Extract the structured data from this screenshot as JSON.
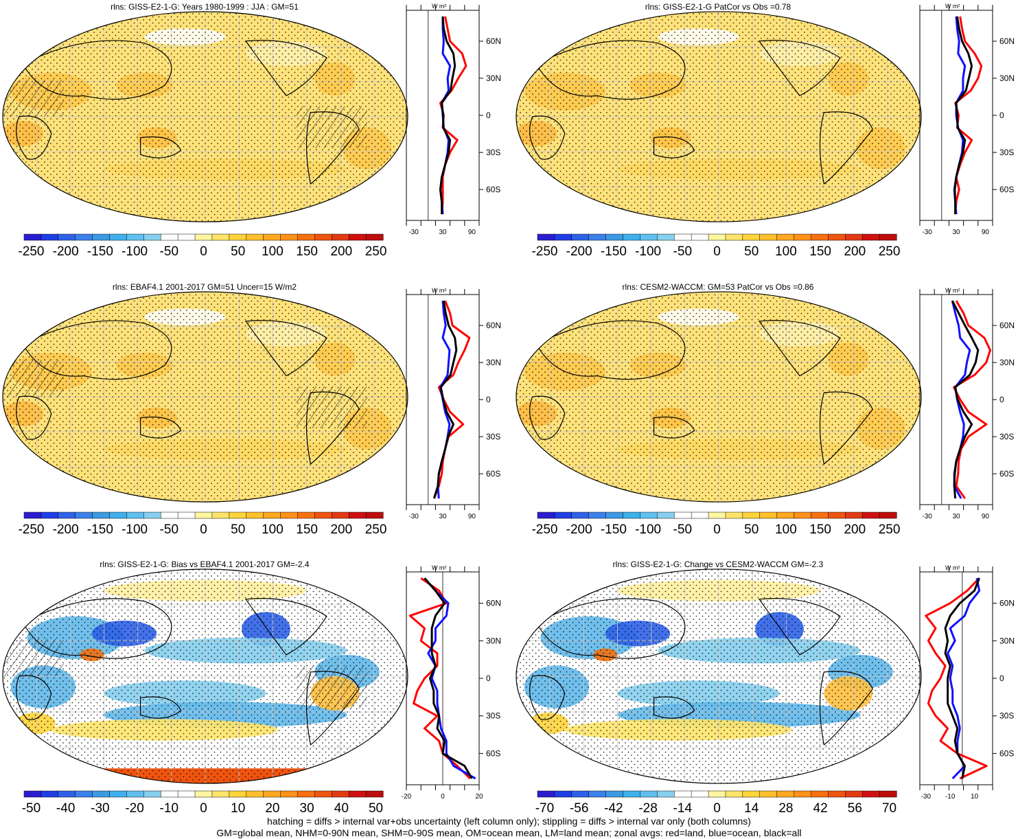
{
  "palette": {
    "sequential": [
      "#ffffff",
      "#fff4b0",
      "#ffe680",
      "#ffd040",
      "#ffb830",
      "#ff9a20",
      "#f07010",
      "#e04010",
      "#c81010"
    ],
    "diverging_neg": [
      "#2020d0",
      "#2050e0",
      "#3080e8",
      "#40a0e8",
      "#60b8ea",
      "#8cccf0"
    ],
    "diverging_pos": [
      "#fff0a0",
      "#ffd860",
      "#ffc040",
      "#ffa020",
      "#f07810",
      "#e04010",
      "#c01010"
    ],
    "land_line": "#ff0000",
    "ocean_line": "#1010ff",
    "all_line": "#000000"
  },
  "colorbar_abs": {
    "ticks": [
      "-250",
      "-200",
      "-150",
      "-100",
      "-50",
      "0",
      "50",
      "100",
      "150",
      "200",
      "250"
    ],
    "colors": [
      "#2a1ed0",
      "#1f3ee6",
      "#2f62e8",
      "#3c80ea",
      "#3c9ae4",
      "#3fb0ec",
      "#5fc0f0",
      "#86cfee",
      "#ffffff",
      "#ffffff",
      "#fff6a0",
      "#ffe46a",
      "#ffd43a",
      "#ffc02a",
      "#ffa820",
      "#ff9018",
      "#f87010",
      "#ef5410",
      "#e23a12",
      "#d01010",
      "#bd0c0c"
    ]
  },
  "colorbar_bias": {
    "ticks": [
      "-50",
      "-40",
      "-30",
      "-20",
      "-10",
      "0",
      "10",
      "20",
      "30",
      "40",
      "50"
    ],
    "colors": [
      "#2a1ed0",
      "#1f3ee6",
      "#2f62e8",
      "#3c80ea",
      "#3c9ae4",
      "#3fb0ec",
      "#5fc0f0",
      "#86cfee",
      "#ffffff",
      "#ffffff",
      "#fff6a0",
      "#ffe46a",
      "#ffd43a",
      "#ffc02a",
      "#ffa820",
      "#ff9018",
      "#f87010",
      "#ef5410",
      "#e23a12",
      "#d01010",
      "#bd0c0c"
    ]
  },
  "colorbar_change": {
    "ticks": [
      "-70",
      "-56",
      "-42",
      "-28",
      "-14",
      "0",
      "14",
      "28",
      "42",
      "56",
      "70"
    ],
    "colors": [
      "#2a1ed0",
      "#1f3ee6",
      "#2f62e8",
      "#3c80ea",
      "#3c9ae4",
      "#3fb0ec",
      "#5fc0f0",
      "#86cfee",
      "#ffffff",
      "#ffffff",
      "#fff6a0",
      "#ffe46a",
      "#ffd43a",
      "#ffc02a",
      "#ffa820",
      "#ff9018",
      "#f87010",
      "#ef5410",
      "#e23a12",
      "#d01010",
      "#bd0c0c"
    ]
  },
  "zonal_lat_ticks": [
    "60N",
    "30N",
    "0",
    "30S",
    "60S"
  ],
  "zonal_unit": "W m²",
  "panels": [
    {
      "title": "rlns: GISS-E2-1-G: Years 1980-1999 : JJA : GM=51",
      "xticks": [
        "-30",
        "30",
        "90"
      ],
      "kind": "abs"
    },
    {
      "title": "rlns: GISS-E2-1-G PatCor vs Obs =0.78",
      "xticks": [
        "-30",
        "30",
        "90"
      ],
      "kind": "abs"
    },
    {
      "title": "rlns: EBAF4.1 2001-2017 GM=51 Uncer=15 W/m2",
      "xticks": [
        "-30",
        "30",
        "90"
      ],
      "kind": "abs"
    },
    {
      "title": "rlns: CESM2-WACCM: GM=53 PatCor vs Obs =0.86",
      "xticks": [
        "-30",
        "30",
        "90"
      ],
      "kind": "abs"
    },
    {
      "title": "rlns: GISS-E2-1-G: Bias vs EBAF4.1 2001-2017 GM=-2.4",
      "xticks": [
        "-20",
        "0",
        "20"
      ],
      "kind": "bias"
    },
    {
      "title": "rlns: GISS-E2-1-G: Change vs CESM2-WACCM GM=-2.3",
      "xticks": [
        "-30",
        "-10",
        "10"
      ],
      "kind": "change"
    }
  ],
  "chart_data": [
    {
      "type": "line",
      "title": "rlns: GISS-E2-1-G: Years 1980-1999 : JJA : GM=51",
      "xlabel": "W m²",
      "xlim": [
        -45,
        105
      ],
      "lat": [
        80,
        70,
        60,
        50,
        40,
        30,
        20,
        10,
        0,
        -10,
        -20,
        -30,
        -40,
        -50,
        -60,
        -70,
        -80
      ],
      "series": [
        {
          "name": "land",
          "color": "#ff0000",
          "values": [
            35,
            40,
            45,
            70,
            78,
            62,
            48,
            25,
            32,
            30,
            60,
            45,
            35,
            30,
            30,
            30,
            28
          ]
        },
        {
          "name": "ocean",
          "color": "#1010ff",
          "values": [
            30,
            30,
            32,
            30,
            45,
            40,
            42,
            28,
            30,
            32,
            42,
            40,
            35,
            28,
            25,
            28,
            30
          ]
        },
        {
          "name": "all",
          "color": "#000000",
          "values": [
            30,
            32,
            38,
            52,
            55,
            50,
            46,
            28,
            31,
            31,
            45,
            42,
            35,
            28,
            25,
            28,
            28
          ]
        }
      ]
    },
    {
      "type": "line",
      "title": "rlns: GISS-E2-1-G PatCor vs Obs =0.78",
      "xlabel": "W m²",
      "xlim": [
        -45,
        105
      ],
      "lat": [
        80,
        70,
        60,
        50,
        40,
        30,
        20,
        10,
        0,
        -10,
        -20,
        -30,
        -40,
        -50,
        -60,
        -70,
        -80
      ],
      "series": [
        {
          "name": "land",
          "color": "#ff0000",
          "values": [
            38,
            42,
            48,
            68,
            82,
            75,
            60,
            28,
            35,
            32,
            62,
            48,
            38,
            30,
            36,
            30,
            28
          ]
        },
        {
          "name": "ocean",
          "color": "#1010ff",
          "values": [
            30,
            32,
            36,
            34,
            48,
            44,
            44,
            30,
            30,
            34,
            44,
            42,
            36,
            30,
            26,
            28,
            30
          ]
        },
        {
          "name": "all",
          "color": "#000000",
          "values": [
            32,
            36,
            42,
            55,
            62,
            56,
            50,
            30,
            32,
            33,
            48,
            44,
            36,
            30,
            27,
            28,
            28
          ]
        }
      ]
    },
    {
      "type": "line",
      "title": "rlns: EBAF4.1 2001-2017 GM=51 Uncer=15 W/m2",
      "xlabel": "W m²",
      "xlim": [
        -45,
        105
      ],
      "lat": [
        80,
        70,
        60,
        50,
        40,
        30,
        20,
        10,
        0,
        -10,
        -20,
        -30,
        -40,
        -50,
        -60,
        -70,
        -80
      ],
      "series": [
        {
          "name": "land",
          "color": "#ff0000",
          "values": [
            35,
            45,
            50,
            85,
            75,
            62,
            52,
            22,
            32,
            45,
            72,
            42,
            35,
            30,
            28,
            22,
            12
          ]
        },
        {
          "name": "ocean",
          "color": "#1010ff",
          "values": [
            30,
            32,
            36,
            30,
            44,
            42,
            40,
            25,
            30,
            35,
            44,
            40,
            35,
            28,
            22,
            20,
            22
          ]
        },
        {
          "name": "all",
          "color": "#000000",
          "values": [
            32,
            36,
            42,
            55,
            58,
            52,
            46,
            26,
            31,
            38,
            52,
            41,
            35,
            28,
            22,
            20,
            12
          ]
        }
      ]
    },
    {
      "type": "line",
      "title": "rlns: CESM2-WACCM: GM=53 PatCor vs Obs =0.86",
      "xlabel": "W m²",
      "xlim": [
        -45,
        105
      ],
      "lat": [
        80,
        70,
        60,
        50,
        40,
        30,
        20,
        10,
        0,
        -10,
        -20,
        -30,
        -40,
        -50,
        -60,
        -70,
        -80
      ],
      "series": [
        {
          "name": "land",
          "color": "#ff0000",
          "values": [
            30,
            45,
            55,
            88,
            100,
            92,
            68,
            25,
            38,
            55,
            92,
            55,
            40,
            35,
            34,
            30,
            48
          ]
        },
        {
          "name": "ocean",
          "color": "#1010ff",
          "values": [
            22,
            28,
            35,
            38,
            58,
            52,
            48,
            28,
            32,
            38,
            46,
            44,
            38,
            30,
            26,
            26,
            40
          ]
        },
        {
          "name": "all",
          "color": "#000000",
          "values": [
            22,
            35,
            48,
            62,
            75,
            70,
            58,
            28,
            33,
            45,
            62,
            48,
            38,
            30,
            27,
            26,
            28
          ]
        }
      ]
    },
    {
      "type": "line",
      "title": "rlns: GISS-E2-1-G: Bias vs EBAF4.1 2001-2017 GM=-2.4",
      "xlabel": "W m²",
      "xlim": [
        -20,
        20
      ],
      "lat": [
        80,
        70,
        60,
        50,
        40,
        30,
        20,
        10,
        0,
        -10,
        -20,
        -30,
        -40,
        -50,
        -60,
        -70,
        -80
      ],
      "series": [
        {
          "name": "land",
          "color": "#ff0000",
          "values": [
            -12,
            -2,
            2,
            -18,
            -10,
            -12,
            -3,
            -3,
            -10,
            -14,
            -16,
            -3,
            -10,
            -2,
            0,
            8,
            15
          ]
        },
        {
          "name": "ocean",
          "color": "#1010ff",
          "values": [
            -10,
            -4,
            3,
            2,
            -4,
            -4,
            -8,
            -4,
            -6,
            -3,
            -3,
            -2,
            -1,
            2,
            2,
            6,
            18
          ]
        },
        {
          "name": "all",
          "color": "#000000",
          "values": [
            -10,
            -4,
            1,
            -4,
            -6,
            -6,
            -6,
            -4,
            -7,
            -5,
            -5,
            -2,
            -3,
            1,
            0,
            12,
            16
          ]
        }
      ]
    },
    {
      "type": "line",
      "title": "rlns: GISS-E2-1-G: Change vs CESM2-WACCM GM=-2.3",
      "xlabel": "W m²",
      "xlim": [
        -35,
        25
      ],
      "lat": [
        80,
        70,
        60,
        50,
        40,
        30,
        20,
        10,
        0,
        -10,
        -20,
        -30,
        -40,
        -50,
        -60,
        -70,
        -80
      ],
      "series": [
        {
          "name": "land",
          "color": "#ff0000",
          "values": [
            14,
            4,
            -10,
            -30,
            -22,
            -28,
            -22,
            -14,
            -18,
            -25,
            -28,
            -22,
            -12,
            -18,
            -4,
            20,
            -2
          ]
        },
        {
          "name": "ocean",
          "color": "#1010ff",
          "values": [
            12,
            14,
            6,
            2,
            -10,
            -6,
            -12,
            -8,
            -10,
            -8,
            -8,
            -4,
            -2,
            -4,
            -4,
            2,
            -8
          ]
        },
        {
          "name": "all",
          "color": "#000000",
          "values": [
            14,
            10,
            -2,
            -10,
            -14,
            -12,
            -14,
            -10,
            -12,
            -12,
            -12,
            -8,
            -4,
            -6,
            -4,
            2,
            0
          ]
        }
      ]
    }
  ],
  "footer": {
    "line1": "hatching = diffs > internal var+obs uncertainty (left column only); stippling = diffs > internal var only (both columns)",
    "line2": "GM=global mean, NHM=0-90N mean, SHM=0-90S mean, OM=ocean mean, LM=land mean; zonal avgs: red=land, blue=ocean, black=all"
  }
}
